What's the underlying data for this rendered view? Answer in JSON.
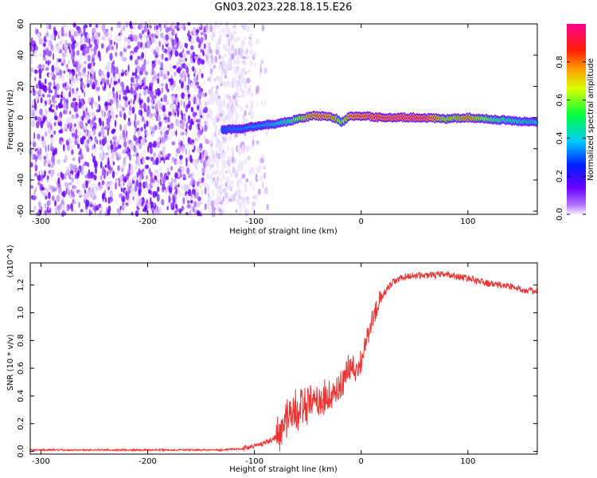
{
  "title": "GN03.2023.228.18.15.E26",
  "colors": {
    "background": "#ffffff",
    "noise_purple": "#7b1fe0",
    "snr_line": "#ee3333",
    "axis": "#000000"
  },
  "chart_data": [
    {
      "type": "heatmap",
      "xlabel": "Height of straight line (km)",
      "ylabel": "Frequency (Hz)",
      "xlim": [
        -310,
        165
      ],
      "ylim": [
        -62,
        60
      ],
      "xticks": [
        -300,
        -200,
        -100,
        0,
        100
      ],
      "yticks": [
        60,
        40,
        20,
        0,
        -20,
        -40,
        -60
      ],
      "colorbar": {
        "label": "Normalized spectral amplitude",
        "range": [
          0.0,
          1.0
        ],
        "ticks": [
          "0.0",
          "0.2",
          "0.4",
          "0.6",
          "0.8"
        ],
        "colormap": "rainbow (purple-blue-cyan-green-yellow-red-magenta)"
      },
      "noise_region_x": [
        -310,
        -115
      ],
      "signal_ridge": {
        "x": [
          -130,
          -110,
          -95,
          -80,
          -65,
          -55,
          -45,
          -35,
          -25,
          -18,
          -10,
          0,
          20,
          60,
          80,
          100,
          120,
          140,
          165
        ],
        "frequency_hz": [
          -8,
          -7,
          -5,
          -4,
          -2,
          0,
          1,
          1,
          0,
          -3,
          1,
          1,
          0,
          0,
          -1,
          0,
          -1,
          -2,
          -3
        ],
        "amplitude": [
          0.3,
          0.35,
          0.4,
          0.45,
          0.55,
          0.75,
          0.85,
          0.9,
          0.8,
          0.6,
          0.9,
          0.95,
          1.0,
          1.0,
          0.7,
          0.85,
          0.6,
          0.5,
          0.45
        ]
      }
    },
    {
      "type": "line",
      "xlabel": "Height of straight line (km)",
      "ylabel": "SNR (10 * v/v)",
      "y_multiplier": "(x10^4)",
      "xlim": [
        -310,
        165
      ],
      "ylim": [
        -0.02,
        1.36
      ],
      "xticks": [
        -300,
        -200,
        -100,
        0,
        100
      ],
      "yticks": [
        0.0,
        0.2,
        0.4,
        0.6,
        0.8,
        1.0,
        1.2
      ],
      "series": [
        {
          "color": "#ee3333",
          "x": [
            -310,
            -200,
            -130,
            -110,
            -95,
            -85,
            -75,
            -70,
            -60,
            -50,
            -40,
            -30,
            -20,
            -15,
            -10,
            -5,
            0,
            5,
            10,
            15,
            20,
            25,
            30,
            40,
            50,
            60,
            70,
            80,
            90,
            100,
            110,
            120,
            130,
            140,
            150,
            165
          ],
          "y": [
            0.01,
            0.01,
            0.01,
            0.02,
            0.05,
            0.08,
            0.12,
            0.25,
            0.3,
            0.33,
            0.35,
            0.4,
            0.45,
            0.55,
            0.62,
            0.58,
            0.66,
            0.8,
            0.95,
            1.05,
            1.12,
            1.18,
            1.22,
            1.26,
            1.27,
            1.27,
            1.27,
            1.28,
            1.26,
            1.25,
            1.23,
            1.21,
            1.2,
            1.19,
            1.17,
            1.15
          ]
        }
      ]
    }
  ]
}
